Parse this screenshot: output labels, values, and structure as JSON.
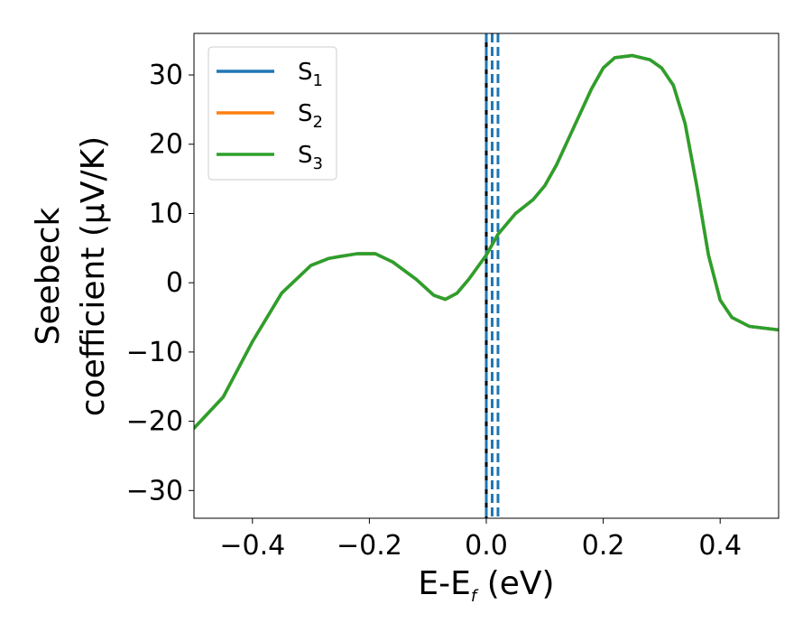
{
  "chart_data": {
    "type": "line",
    "xlabel": "E-E",
    "xlabel_sub": "f",
    "xlabel_unit": " (eV)",
    "ylabel_line1": "Seebeck",
    "ylabel_line2": "coefficient  (μV/K)",
    "xlim": [
      -0.5,
      0.5
    ],
    "ylim": [
      -34,
      36
    ],
    "x_ticks": [
      -0.4,
      -0.2,
      0.0,
      0.2,
      0.4
    ],
    "x_tick_labels": [
      "−0.4",
      "−0.2",
      "0.0",
      "0.2",
      "0.4"
    ],
    "y_ticks": [
      -30,
      -20,
      -10,
      0,
      10,
      20,
      30
    ],
    "y_tick_labels": [
      "−30",
      "−20",
      "−10",
      "0",
      "10",
      "20",
      "30"
    ],
    "grid": false,
    "legend_position": "top-left",
    "vertical_lines": [
      {
        "x": 0.0,
        "color": "#000000",
        "style": "solid"
      },
      {
        "x": 0.0,
        "color": "#1f77b4",
        "style": "dashed"
      },
      {
        "x": 0.01,
        "color": "#1f77b4",
        "style": "dashed"
      },
      {
        "x": 0.02,
        "color": "#1f77b4",
        "style": "dashed"
      }
    ],
    "series": [
      {
        "name": "S",
        "sub": "1",
        "color": "#1f77b4",
        "x": [
          -0.5,
          -0.45,
          -0.4,
          -0.35,
          -0.3,
          -0.27,
          -0.25,
          -0.22,
          -0.19,
          -0.16,
          -0.12,
          -0.09,
          -0.07,
          -0.05,
          -0.03,
          0.0,
          0.02,
          0.05,
          0.08,
          0.1,
          0.12,
          0.15,
          0.18,
          0.2,
          0.22,
          0.25,
          0.28,
          0.3,
          0.32,
          0.34,
          0.36,
          0.38,
          0.4,
          0.42,
          0.45,
          0.5
        ],
        "y": [
          -21,
          -16.5,
          -8.5,
          -1.5,
          2.5,
          3.5,
          3.8,
          4.2,
          4.2,
          3.0,
          0.5,
          -1.8,
          -2.4,
          -1.5,
          0.5,
          4.0,
          7.0,
          10.0,
          12.0,
          14.0,
          17.0,
          22.5,
          28.0,
          31.0,
          32.5,
          32.8,
          32.2,
          31.0,
          28.5,
          23.0,
          14.0,
          4.0,
          -2.5,
          -5.0,
          -6.3,
          -6.8
        ]
      },
      {
        "name": "S",
        "sub": "2",
        "color": "#ff7f0e",
        "x": [
          -0.5,
          -0.45,
          -0.4,
          -0.35,
          -0.3,
          -0.27,
          -0.25,
          -0.22,
          -0.19,
          -0.16,
          -0.12,
          -0.09,
          -0.07,
          -0.05,
          -0.03,
          0.0,
          0.02,
          0.05,
          0.08,
          0.1,
          0.12,
          0.15,
          0.18,
          0.2,
          0.22,
          0.25,
          0.28,
          0.3,
          0.32,
          0.34,
          0.36,
          0.38,
          0.4,
          0.42,
          0.45,
          0.5
        ],
        "y": [
          -21,
          -16.5,
          -8.5,
          -1.5,
          2.5,
          3.5,
          3.8,
          4.2,
          4.2,
          3.0,
          0.5,
          -1.8,
          -2.4,
          -1.5,
          0.5,
          4.0,
          7.0,
          10.0,
          12.0,
          14.0,
          17.0,
          22.5,
          28.0,
          31.0,
          32.5,
          32.8,
          32.2,
          31.0,
          28.5,
          23.0,
          14.0,
          4.0,
          -2.5,
          -5.0,
          -6.3,
          -6.8
        ]
      },
      {
        "name": "S",
        "sub": "3",
        "color": "#2ca02c",
        "x": [
          -0.5,
          -0.45,
          -0.4,
          -0.35,
          -0.3,
          -0.27,
          -0.25,
          -0.22,
          -0.19,
          -0.16,
          -0.12,
          -0.09,
          -0.07,
          -0.05,
          -0.03,
          0.0,
          0.02,
          0.05,
          0.08,
          0.1,
          0.12,
          0.15,
          0.18,
          0.2,
          0.22,
          0.25,
          0.28,
          0.3,
          0.32,
          0.34,
          0.36,
          0.38,
          0.4,
          0.42,
          0.45,
          0.5
        ],
        "y": [
          -21,
          -16.5,
          -8.5,
          -1.5,
          2.5,
          3.5,
          3.8,
          4.2,
          4.2,
          3.0,
          0.5,
          -1.8,
          -2.4,
          -1.5,
          0.5,
          4.0,
          7.0,
          10.0,
          12.0,
          14.0,
          17.0,
          22.5,
          28.0,
          31.0,
          32.5,
          32.8,
          32.2,
          31.0,
          28.5,
          23.0,
          14.0,
          4.0,
          -2.5,
          -5.0,
          -6.3,
          -6.8
        ]
      }
    ]
  }
}
